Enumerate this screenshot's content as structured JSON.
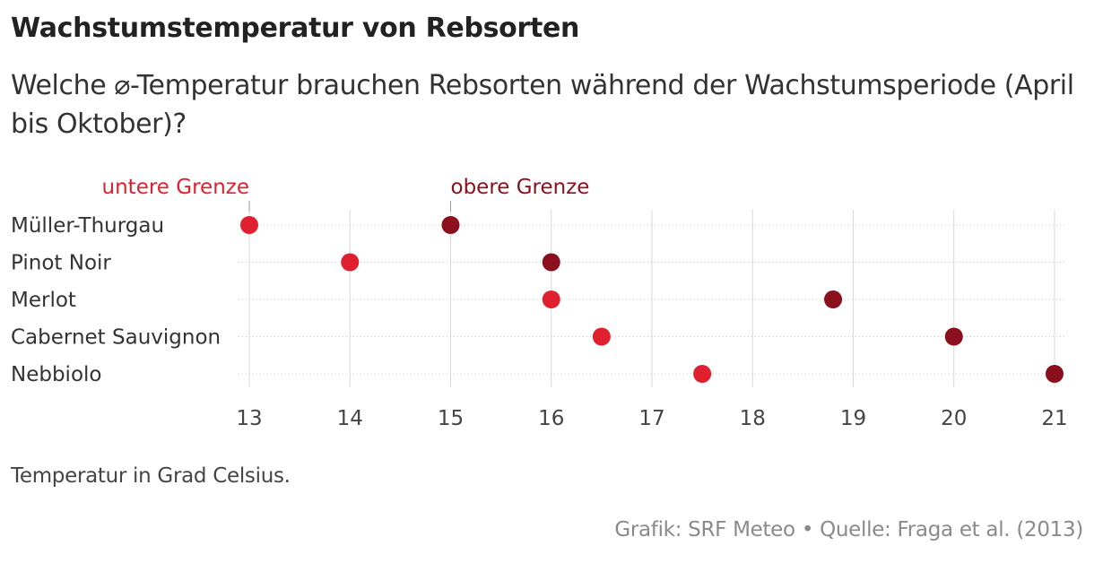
{
  "header": {
    "title": "Wachstumstemperatur von Rebsorten",
    "subtitle": "Welche ⌀-Temperatur brauchen Rebsorten während der Wachstumsperiode (April bis Oktober)?"
  },
  "footer": {
    "note": "Temperatur in Grad Celsius.",
    "source": "Grafik: SRF Meteo • Quelle: Fraga et al. (2013)"
  },
  "colors": {
    "lower": "#e0202e",
    "upper": "#8b0f1d",
    "bar_lower": "#ee8a90",
    "bar_upper": "#c7797f",
    "grid": "#d8d8d8",
    "row_line": "#c8c8c8",
    "text": "#333333"
  },
  "chart_data": {
    "type": "dumbbell",
    "title": "Wachstumstemperatur von Rebsorten",
    "xlabel": "Temperatur in Grad Celsius.",
    "xlim": [
      13,
      21
    ],
    "xticks": [
      13,
      14,
      15,
      16,
      17,
      18,
      19,
      20,
      21
    ],
    "legend": {
      "lower_label": "untere Grenze",
      "upper_label": "obere Grenze",
      "placement": "top, annotating first row"
    },
    "categories": [
      "Müller-Thurgau",
      "Pinot Noir",
      "Merlot",
      "Cabernet Sauvignon",
      "Nebbiolo"
    ],
    "series": [
      {
        "name": "untere Grenze",
        "values": [
          13,
          14,
          16,
          16.5,
          17.5
        ]
      },
      {
        "name": "obere Grenze",
        "values": [
          15,
          16,
          18.8,
          20,
          21
        ]
      }
    ]
  }
}
